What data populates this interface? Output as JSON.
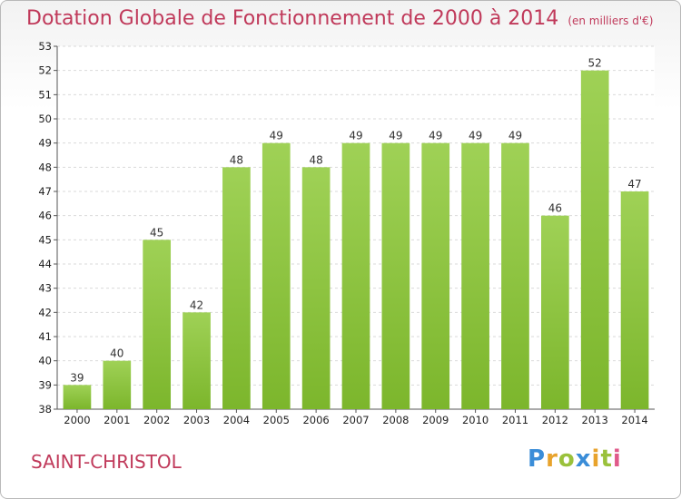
{
  "chart_data": {
    "type": "bar",
    "title": "Dotation Globale de Fonctionnement de 2000 à 2014",
    "subtitle": "(en milliers d'€)",
    "categories": [
      "2000",
      "2001",
      "2002",
      "2003",
      "2004",
      "2005",
      "2006",
      "2007",
      "2008",
      "2009",
      "2010",
      "2011",
      "2012",
      "2013",
      "2014"
    ],
    "values": [
      39,
      40,
      45,
      42,
      48,
      49,
      48,
      49,
      49,
      49,
      49,
      49,
      46,
      52,
      47
    ],
    "ylim": [
      38,
      53
    ],
    "yticks": [
      38,
      39,
      40,
      41,
      42,
      43,
      44,
      45,
      46,
      47,
      48,
      49,
      50,
      51,
      52,
      53
    ],
    "grid": true,
    "bar_color": "#7cb62c",
    "bar_color_light": "#9fd156"
  },
  "footer": {
    "commune": "SAINT-CHRISTOL",
    "logo": "Proxiti"
  }
}
